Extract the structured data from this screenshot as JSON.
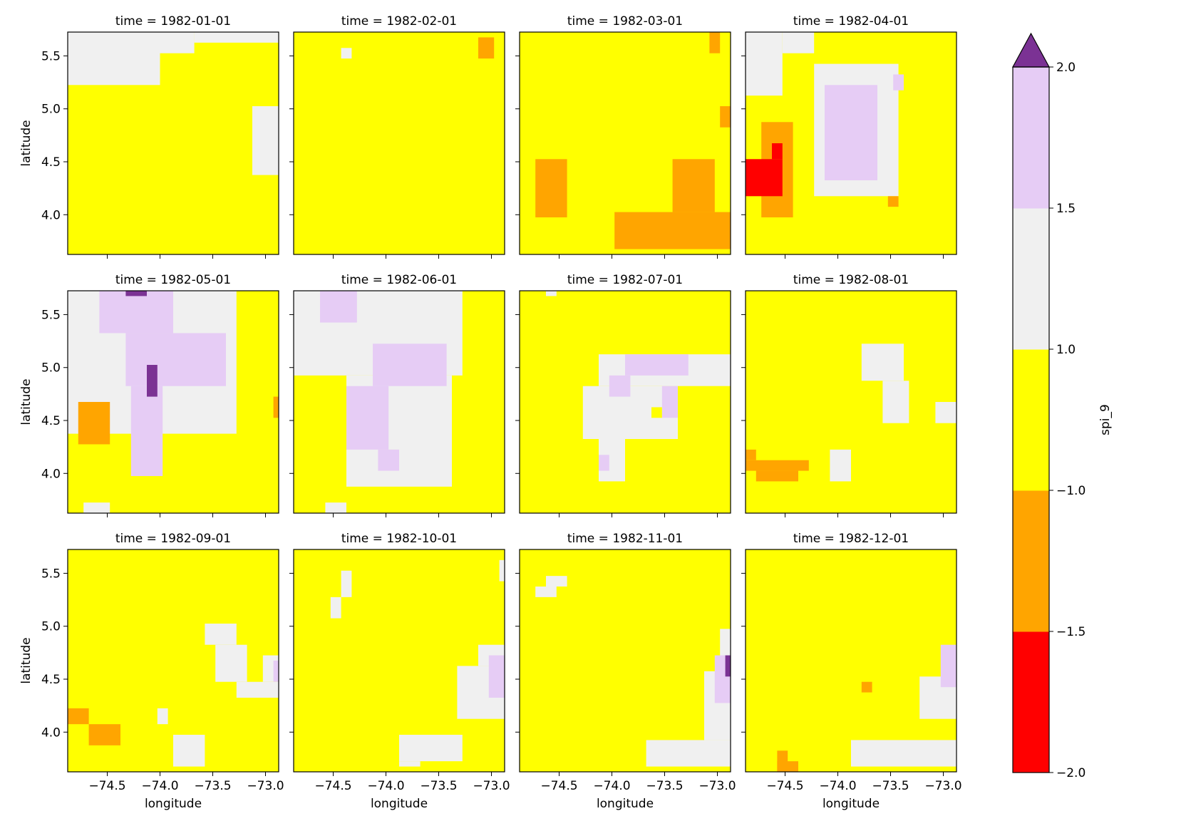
{
  "chart_data": {
    "type": "heatmap",
    "variable_label": "spi_9",
    "xlabel": "longitude",
    "ylabel": "latitude",
    "title_prefix": "time = ",
    "xlim": [
      -74.875,
      -72.875
    ],
    "ylim": [
      3.625,
      5.725
    ],
    "xticks": [
      -74.5,
      -74.0,
      -73.5,
      -73.0
    ],
    "xtick_labels": [
      "−74.5",
      "−74.0",
      "−73.5",
      "−73.0"
    ],
    "yticks": [
      4.0,
      4.5,
      5.0,
      5.5
    ],
    "ytick_labels": [
      "4.0",
      "4.5",
      "5.0",
      "5.5"
    ],
    "colorbar": {
      "bounds": [
        -2.0,
        -1.5,
        -1.0,
        1.0,
        1.5,
        2.0
      ],
      "tick_labels": [
        "−2.0",
        "−1.5",
        "−1.0",
        "1.0",
        "1.5",
        "2.0"
      ],
      "colors": [
        "#ff0000",
        "#ffa500",
        "#ffff00",
        "#f0f0f0",
        "#e6ccf5"
      ],
      "extend_color": "#7b3294"
    },
    "panels": [
      {
        "time": "1982-01-01",
        "background": "#ffff00",
        "regions": [
          {
            "color": "#f0f0f0",
            "x0": -74.875,
            "x1": -74.0,
            "y0": 5.225,
            "y1": 5.725
          },
          {
            "color": "#f0f0f0",
            "x0": -74.0,
            "x1": -73.675,
            "y0": 5.525,
            "y1": 5.725
          },
          {
            "color": "#f0f0f0",
            "x0": -73.675,
            "x1": -72.875,
            "y0": 5.625,
            "y1": 5.725
          },
          {
            "color": "#f0f0f0",
            "x0": -73.125,
            "x1": -72.875,
            "y0": 4.375,
            "y1": 5.025
          }
        ]
      },
      {
        "time": "1982-02-01",
        "background": "#ffff00",
        "regions": [
          {
            "color": "#f0f0f0",
            "x0": -74.425,
            "x1": -74.325,
            "y0": 5.475,
            "y1": 5.575
          },
          {
            "color": "#ffa500",
            "x0": -73.125,
            "x1": -72.975,
            "y0": 5.475,
            "y1": 5.675
          }
        ]
      },
      {
        "time": "1982-03-01",
        "background": "#ffff00",
        "regions": [
          {
            "color": "#ffa500",
            "x0": -74.725,
            "x1": -74.425,
            "y0": 3.975,
            "y1": 4.525
          },
          {
            "color": "#ffa500",
            "x0": -73.975,
            "x1": -72.875,
            "y0": 3.675,
            "y1": 4.025
          },
          {
            "color": "#ffa500",
            "x0": -73.425,
            "x1": -73.025,
            "y0": 4.025,
            "y1": 4.525
          },
          {
            "color": "#ffa500",
            "x0": -73.075,
            "x1": -72.975,
            "y0": 5.525,
            "y1": 5.725
          },
          {
            "color": "#ffa500",
            "x0": -72.975,
            "x1": -72.875,
            "y0": 4.825,
            "y1": 5.025
          }
        ]
      },
      {
        "time": "1982-04-01",
        "background": "#ffff00",
        "regions": [
          {
            "color": "#f0f0f0",
            "x0": -74.875,
            "x1": -74.525,
            "y0": 5.125,
            "y1": 5.725
          },
          {
            "color": "#f0f0f0",
            "x0": -74.525,
            "x1": -74.225,
            "y0": 5.525,
            "y1": 5.725
          },
          {
            "color": "#f0f0f0",
            "x0": -74.225,
            "x1": -73.425,
            "y0": 4.175,
            "y1": 5.425
          },
          {
            "color": "#e6ccf5",
            "x0": -74.125,
            "x1": -73.625,
            "y0": 4.325,
            "y1": 5.225
          },
          {
            "color": "#e6ccf5",
            "x0": -73.475,
            "x1": -73.375,
            "y0": 5.175,
            "y1": 5.325
          },
          {
            "color": "#ffa500",
            "x0": -74.725,
            "x1": -74.425,
            "y0": 3.975,
            "y1": 4.875
          },
          {
            "color": "#ff0000",
            "x0": -74.875,
            "x1": -74.525,
            "y0": 4.175,
            "y1": 4.525
          },
          {
            "color": "#ff0000",
            "x0": -74.625,
            "x1": -74.525,
            "y0": 4.525,
            "y1": 4.675
          },
          {
            "color": "#ffa500",
            "x0": -73.525,
            "x1": -73.425,
            "y0": 4.075,
            "y1": 4.175
          }
        ]
      },
      {
        "time": "1982-05-01",
        "background": "#ffff00",
        "regions": [
          {
            "color": "#f0f0f0",
            "x0": -74.875,
            "x1": -73.275,
            "y0": 4.375,
            "y1": 5.725
          },
          {
            "color": "#e6ccf5",
            "x0": -74.575,
            "x1": -73.875,
            "y0": 5.325,
            "y1": 5.725
          },
          {
            "color": "#e6ccf5",
            "x0": -74.325,
            "x1": -73.375,
            "y0": 4.825,
            "y1": 5.325
          },
          {
            "color": "#e6ccf5",
            "x0": -74.275,
            "x1": -73.975,
            "y0": 3.975,
            "y1": 4.825
          },
          {
            "color": "#7b3294",
            "x0": -74.325,
            "x1": -74.125,
            "y0": 5.675,
            "y1": 5.725
          },
          {
            "color": "#7b3294",
            "x0": -74.125,
            "x1": -74.025,
            "y0": 4.725,
            "y1": 5.025
          },
          {
            "color": "#ffa500",
            "x0": -74.775,
            "x1": -74.475,
            "y0": 4.275,
            "y1": 4.675
          },
          {
            "color": "#ffa500",
            "x0": -72.925,
            "x1": -72.875,
            "y0": 4.525,
            "y1": 4.725
          },
          {
            "color": "#f0f0f0",
            "x0": -74.725,
            "x1": -74.475,
            "y0": 3.625,
            "y1": 3.725
          }
        ]
      },
      {
        "time": "1982-06-01",
        "background": "#ffff00",
        "regions": [
          {
            "color": "#f0f0f0",
            "x0": -74.875,
            "x1": -73.275,
            "y0": 4.925,
            "y1": 5.725
          },
          {
            "color": "#f0f0f0",
            "x0": -74.375,
            "x1": -73.375,
            "y0": 3.875,
            "y1": 4.925
          },
          {
            "color": "#e6ccf5",
            "x0": -74.625,
            "x1": -74.275,
            "y0": 5.425,
            "y1": 5.725
          },
          {
            "color": "#e6ccf5",
            "x0": -74.125,
            "x1": -73.425,
            "y0": 4.825,
            "y1": 5.225
          },
          {
            "color": "#e6ccf5",
            "x0": -74.375,
            "x1": -73.975,
            "y0": 4.225,
            "y1": 4.825
          },
          {
            "color": "#e6ccf5",
            "x0": -74.075,
            "x1": -73.875,
            "y0": 4.025,
            "y1": 4.225
          },
          {
            "color": "#f0f0f0",
            "x0": -74.575,
            "x1": -74.375,
            "y0": 3.625,
            "y1": 3.725
          }
        ]
      },
      {
        "time": "1982-07-01",
        "background": "#ffff00",
        "regions": [
          {
            "color": "#f0f0f0",
            "x0": -74.625,
            "x1": -74.525,
            "y0": 5.675,
            "y1": 5.725
          },
          {
            "color": "#f0f0f0",
            "x0": -74.125,
            "x1": -72.875,
            "y0": 4.825,
            "y1": 5.125
          },
          {
            "color": "#f0f0f0",
            "x0": -74.275,
            "x1": -73.375,
            "y0": 4.325,
            "y1": 4.825
          },
          {
            "color": "#f0f0f0",
            "x0": -74.125,
            "x1": -73.875,
            "y0": 3.925,
            "y1": 4.325
          },
          {
            "color": "#e6ccf5",
            "x0": -73.875,
            "x1": -73.275,
            "y0": 4.925,
            "y1": 5.125
          },
          {
            "color": "#e6ccf5",
            "x0": -74.025,
            "x1": -73.825,
            "y0": 4.725,
            "y1": 4.925
          },
          {
            "color": "#e6ccf5",
            "x0": -73.525,
            "x1": -73.375,
            "y0": 4.525,
            "y1": 4.825
          },
          {
            "color": "#e6ccf5",
            "x0": -74.125,
            "x1": -74.025,
            "y0": 4.025,
            "y1": 4.175
          },
          {
            "color": "#ffff00",
            "x0": -73.625,
            "x1": -73.525,
            "y0": 4.525,
            "y1": 4.625
          }
        ]
      },
      {
        "time": "1982-08-01",
        "background": "#ffff00",
        "regions": [
          {
            "color": "#f0f0f0",
            "x0": -73.775,
            "x1": -73.375,
            "y0": 4.875,
            "y1": 5.225
          },
          {
            "color": "#f0f0f0",
            "x0": -73.575,
            "x1": -73.325,
            "y0": 4.475,
            "y1": 4.875
          },
          {
            "color": "#f0f0f0",
            "x0": -73.075,
            "x1": -72.875,
            "y0": 4.475,
            "y1": 4.675
          },
          {
            "color": "#f0f0f0",
            "x0": -74.075,
            "x1": -73.875,
            "y0": 3.925,
            "y1": 4.225
          },
          {
            "color": "#ffa500",
            "x0": -74.875,
            "x1": -74.275,
            "y0": 4.025,
            "y1": 4.125
          },
          {
            "color": "#ffa500",
            "x0": -74.775,
            "x1": -74.375,
            "y0": 3.925,
            "y1": 4.025
          },
          {
            "color": "#ffa500",
            "x0": -74.875,
            "x1": -74.775,
            "y0": 4.125,
            "y1": 4.225
          }
        ]
      },
      {
        "time": "1982-09-01",
        "background": "#ffff00",
        "regions": [
          {
            "color": "#f0f0f0",
            "x0": -73.575,
            "x1": -73.275,
            "y0": 4.825,
            "y1": 5.025
          },
          {
            "color": "#f0f0f0",
            "x0": -73.475,
            "x1": -73.175,
            "y0": 4.475,
            "y1": 4.825
          },
          {
            "color": "#f0f0f0",
            "x0": -73.275,
            "x1": -72.875,
            "y0": 4.325,
            "y1": 4.475
          },
          {
            "color": "#f0f0f0",
            "x0": -73.025,
            "x1": -72.875,
            "y0": 4.475,
            "y1": 4.725
          },
          {
            "color": "#e6ccf5",
            "x0": -72.925,
            "x1": -72.875,
            "y0": 4.475,
            "y1": 4.675
          },
          {
            "color": "#f0f0f0",
            "x0": -73.875,
            "x1": -73.575,
            "y0": 3.675,
            "y1": 3.975
          },
          {
            "color": "#f0f0f0",
            "x0": -74.025,
            "x1": -73.925,
            "y0": 4.075,
            "y1": 4.225
          },
          {
            "color": "#ffa500",
            "x0": -74.875,
            "x1": -74.675,
            "y0": 4.075,
            "y1": 4.225
          },
          {
            "color": "#ffa500",
            "x0": -74.675,
            "x1": -74.375,
            "y0": 3.875,
            "y1": 4.075
          }
        ]
      },
      {
        "time": "1982-10-01",
        "background": "#ffff00",
        "regions": [
          {
            "color": "#f0f0f0",
            "x0": -74.525,
            "x1": -74.425,
            "y0": 5.075,
            "y1": 5.275
          },
          {
            "color": "#f0f0f0",
            "x0": -74.425,
            "x1": -74.325,
            "y0": 5.275,
            "y1": 5.525
          },
          {
            "color": "#f0f0f0",
            "x0": -73.325,
            "x1": -72.875,
            "y0": 4.125,
            "y1": 4.625
          },
          {
            "color": "#f0f0f0",
            "x0": -73.125,
            "x1": -72.875,
            "y0": 4.625,
            "y1": 4.825
          },
          {
            "color": "#e6ccf5",
            "x0": -73.025,
            "x1": -72.875,
            "y0": 4.325,
            "y1": 4.725
          },
          {
            "color": "#f0f0f0",
            "x0": -73.875,
            "x1": -73.275,
            "y0": 3.725,
            "y1": 3.975
          },
          {
            "color": "#f0f0f0",
            "x0": -73.875,
            "x1": -73.675,
            "y0": 3.675,
            "y1": 3.725
          },
          {
            "color": "#f0f0f0",
            "x0": -72.925,
            "x1": -72.875,
            "y0": 5.425,
            "y1": 5.625
          }
        ]
      },
      {
        "time": "1982-11-01",
        "background": "#ffff00",
        "regions": [
          {
            "color": "#f0f0f0",
            "x0": -74.725,
            "x1": -74.525,
            "y0": 5.275,
            "y1": 5.375
          },
          {
            "color": "#f0f0f0",
            "x0": -74.625,
            "x1": -74.425,
            "y0": 5.375,
            "y1": 5.475
          },
          {
            "color": "#f0f0f0",
            "x0": -73.675,
            "x1": -72.875,
            "y0": 3.675,
            "y1": 3.925
          },
          {
            "color": "#f0f0f0",
            "x0": -73.125,
            "x1": -72.875,
            "y0": 3.925,
            "y1": 4.575
          },
          {
            "color": "#f0f0f0",
            "x0": -72.975,
            "x1": -72.875,
            "y0": 4.575,
            "y1": 4.975
          },
          {
            "color": "#e6ccf5",
            "x0": -73.025,
            "x1": -72.875,
            "y0": 4.275,
            "y1": 4.725
          },
          {
            "color": "#7b3294",
            "x0": -72.925,
            "x1": -72.875,
            "y0": 4.525,
            "y1": 4.725
          }
        ]
      },
      {
        "time": "1982-12-01",
        "background": "#ffff00",
        "regions": [
          {
            "color": "#f0f0f0",
            "x0": -73.875,
            "x1": -72.875,
            "y0": 3.675,
            "y1": 3.925
          },
          {
            "color": "#f0f0f0",
            "x0": -73.225,
            "x1": -72.875,
            "y0": 4.125,
            "y1": 4.525
          },
          {
            "color": "#e6ccf5",
            "x0": -73.025,
            "x1": -72.875,
            "y0": 4.425,
            "y1": 4.825
          },
          {
            "color": "#ffa500",
            "x0": -73.775,
            "x1": -73.675,
            "y0": 4.375,
            "y1": 4.475
          },
          {
            "color": "#ffa500",
            "x0": -74.575,
            "x1": -74.475,
            "y0": 3.625,
            "y1": 3.825
          },
          {
            "color": "#ffa500",
            "x0": -74.575,
            "x1": -74.375,
            "y0": 3.625,
            "y1": 3.725
          }
        ]
      }
    ]
  }
}
